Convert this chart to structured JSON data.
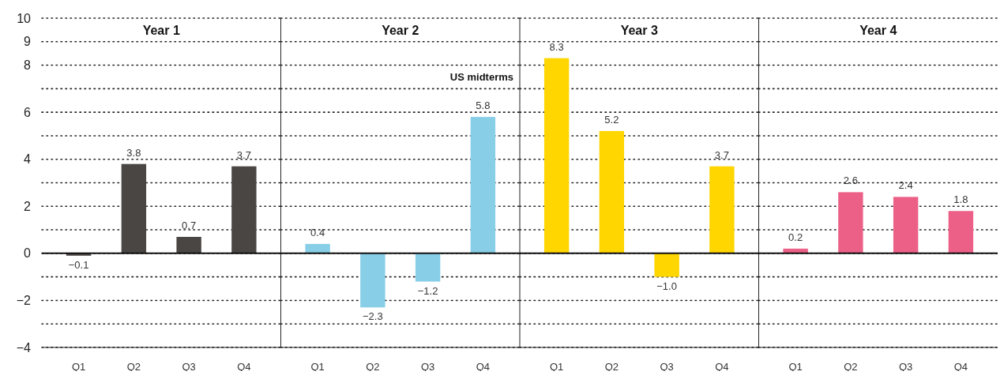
{
  "chart_data": [
    {
      "type": "bar",
      "title": "Year 1",
      "categories": [
        "Q1",
        "Q2",
        "Q3",
        "Q4"
      ],
      "values": [
        -0.1,
        3.8,
        0.7,
        3.7
      ],
      "value_labels": [
        "−0.1",
        "3.8",
        "0.7",
        "3.7"
      ],
      "color": "#4a4643",
      "ylim": [
        -4,
        10
      ],
      "yticks": [
        {
          "value": -4,
          "label": "−4"
        },
        {
          "value": -3,
          "label": null
        },
        {
          "value": -2,
          "label": "−2"
        },
        {
          "value": -1,
          "label": null
        },
        0,
        {
          "value": 1,
          "label": null
        },
        2,
        {
          "value": 3,
          "label": null
        },
        4,
        {
          "value": 5,
          "label": null
        },
        6,
        {
          "value": 7,
          "label": null
        },
        8,
        9,
        10
      ],
      "grid": "y"
    },
    {
      "type": "bar",
      "title": "Year 2",
      "categories": [
        "Q1",
        "Q2",
        "Q3",
        "Q4"
      ],
      "values": [
        0.4,
        -2.3,
        -1.2,
        5.8
      ],
      "value_labels": [
        "0.4",
        "−2.3",
        "−1.2",
        "5.8"
      ],
      "color": "#87cee6",
      "ylim": [
        -4,
        10
      ],
      "yticks": [
        {
          "value": -4,
          "label": null
        },
        {
          "value": -3,
          "label": null
        },
        {
          "value": -2,
          "label": null
        },
        {
          "value": -1,
          "label": null
        },
        {
          "value": 0,
          "label": null
        },
        {
          "value": 1,
          "label": null
        },
        {
          "value": 2,
          "label": null
        },
        {
          "value": 3,
          "label": null
        },
        {
          "value": 4,
          "label": null
        },
        {
          "value": 5,
          "label": null
        },
        {
          "value": 6,
          "label": null
        },
        {
          "value": 7,
          "label": null
        },
        {
          "value": 8,
          "label": null
        },
        {
          "value": 9,
          "label": null
        },
        {
          "value": 10,
          "label": null
        }
      ],
      "grid": "y",
      "tick_labels": "x",
      "annotations": [
        "US midterms"
      ]
    },
    {
      "type": "bar",
      "title": "Year 3",
      "categories": [
        "Q1",
        "Q2",
        "Q3",
        "Q4"
      ],
      "values": [
        8.3,
        5.2,
        -1.0,
        3.7
      ],
      "value_labels": [
        "8.3",
        "5.2",
        "−1.0",
        "3.7"
      ],
      "color": "#ffd600",
      "ylim": [
        -4,
        10
      ],
      "yticks": [
        {
          "value": -4,
          "label": null
        },
        {
          "value": -3,
          "label": null
        },
        {
          "value": -2,
          "label": null
        },
        {
          "value": -1,
          "label": null
        },
        {
          "value": 0,
          "label": null
        },
        {
          "value": 1,
          "label": null
        },
        {
          "value": 2,
          "label": null
        },
        {
          "value": 3,
          "label": null
        },
        {
          "value": 4,
          "label": null
        },
        {
          "value": 5,
          "label": null
        },
        {
          "value": 6,
          "label": null
        },
        {
          "value": 7,
          "label": null
        },
        {
          "value": 8,
          "label": null
        },
        {
          "value": 9,
          "label": null
        },
        {
          "value": 10,
          "label": null
        }
      ],
      "grid": "y",
      "tick_labels": "x"
    },
    {
      "type": "bar",
      "title": "Year 4",
      "categories": [
        "Q1",
        "Q2",
        "Q3",
        "Q4"
      ],
      "values": [
        0.2,
        2.6,
        2.4,
        1.8
      ],
      "value_labels": [
        "0.2",
        "2.6",
        "2.4",
        "1.8"
      ],
      "color": "#ec5f87",
      "ylim": [
        -4,
        10
      ],
      "yticks": [
        {
          "value": -4,
          "label": null
        },
        {
          "value": -3,
          "label": null
        },
        {
          "value": -2,
          "label": null
        },
        {
          "value": -1,
          "label": null
        },
        {
          "value": 0,
          "label": null
        },
        {
          "value": 1,
          "label": null
        },
        {
          "value": 2,
          "label": null
        },
        {
          "value": 3,
          "label": null
        },
        {
          "value": 4,
          "label": null
        },
        {
          "value": 5,
          "label": null
        },
        {
          "value": 6,
          "label": null
        },
        {
          "value": 7,
          "label": null
        },
        {
          "value": 8,
          "label": null
        },
        {
          "value": 9,
          "label": null
        },
        {
          "value": 10,
          "label": null
        }
      ],
      "grid": "y",
      "tick_labels": "x"
    }
  ]
}
